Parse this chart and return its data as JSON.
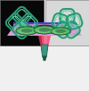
{
  "panel_tl_bg": "#080808",
  "panel_tr_bg": "#d8d8d8",
  "bottom_bg": "#f0f0f0",
  "ring_teal_dark": "#1a6b50",
  "ring_teal_mid": "#2a9b74",
  "ring_teal_bright": "#60d0a8",
  "ring_white": "#c0ece0",
  "platform_top": "#dd99dd",
  "platform_side": "#bb77cc",
  "platform_edge_blue": "#4444cc",
  "disk_green": "#55bb66",
  "disk_light": "#88dd88",
  "disk_dark": "#224433",
  "disk_rim": "#1a3322",
  "probe_body": "#3a9980",
  "probe_dark": "#1a5544",
  "probe_tip": "#225544",
  "laser_pink": "#ff3366",
  "laser_light": "#ff88aa",
  "fig_width": 1.0,
  "fig_height": 1.02,
  "dpi": 100
}
